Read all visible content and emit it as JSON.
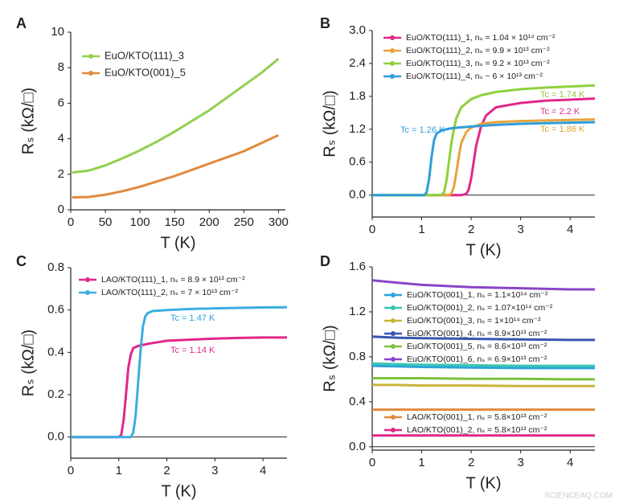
{
  "chart_data": [
    {
      "type": "line",
      "panel": "A",
      "xlabel": "T (K)",
      "ylabel": "Rₛ (kΩ/□)",
      "xlim": [
        0,
        310
      ],
      "xticks": [
        0,
        50,
        100,
        150,
        200,
        250,
        300
      ],
      "ylim": [
        0,
        10
      ],
      "yticks": [
        0,
        2,
        4,
        6,
        8,
        10
      ],
      "x": [
        2,
        25,
        50,
        75,
        100,
        125,
        150,
        175,
        200,
        225,
        250,
        275,
        300
      ],
      "series": [
        {
          "name": "EuO/KTO(111)_3",
          "color": "#8fd14f",
          "values": [
            2.1,
            2.2,
            2.5,
            2.9,
            3.35,
            3.85,
            4.4,
            5.0,
            5.6,
            6.3,
            7.0,
            7.7,
            8.5
          ]
        },
        {
          "name": "EuO/KTO(001)_5",
          "color": "#e08a3c",
          "values": [
            0.7,
            0.72,
            0.85,
            1.05,
            1.3,
            1.6,
            1.9,
            2.25,
            2.6,
            2.95,
            3.3,
            3.75,
            4.2
          ]
        }
      ]
    },
    {
      "type": "line",
      "panel": "B",
      "xlabel": "T (K)",
      "ylabel": "Rₛ (kΩ/□)",
      "xlim": [
        0,
        4.5
      ],
      "xticks": [
        0,
        1,
        2,
        3,
        4
      ],
      "ylim": [
        -0.4,
        3.0
      ],
      "yticks": [
        {
          "value": 0,
          "label": "0.0"
        },
        0.6,
        1.2,
        1.8,
        2.4,
        {
          "value": 3.0,
          "label": "3.0"
        }
      ],
      "series": [
        {
          "name": "EuO/KTO(111)_1, nₛ = 1.04 × 10¹⁴ cm⁻²",
          "color": "#e0278a",
          "x": [
            0,
            1,
            1.8,
            1.9,
            1.95,
            2.0,
            2.05,
            2.1,
            2.2,
            2.3,
            2.5,
            3,
            3.5,
            4,
            4.5
          ],
          "values": [
            0,
            0,
            0,
            0.02,
            0.1,
            0.3,
            0.6,
            0.9,
            1.25,
            1.45,
            1.6,
            1.68,
            1.72,
            1.74,
            1.76
          ]
        },
        {
          "name": "EuO/KTO(111)_2, nₛ = 9.9 × 10¹³ cm⁻²",
          "color": "#e7a33b",
          "x": [
            0,
            1,
            1.55,
            1.6,
            1.65,
            1.7,
            1.75,
            1.8,
            1.9,
            2.0,
            2.2,
            2.5,
            3,
            3.5,
            4,
            4.5
          ],
          "values": [
            0,
            0,
            0,
            0.03,
            0.15,
            0.4,
            0.7,
            0.95,
            1.15,
            1.23,
            1.3,
            1.33,
            1.35,
            1.36,
            1.37,
            1.38
          ]
        },
        {
          "name": "EuO/KTO(111)_3, nₛ = 9.2 × 10¹³ cm⁻²",
          "color": "#8ed13b",
          "x": [
            0,
            1,
            1.4,
            1.45,
            1.5,
            1.55,
            1.6,
            1.65,
            1.7,
            1.8,
            2.0,
            2.2,
            2.5,
            3,
            3.5,
            4,
            4.5
          ],
          "values": [
            0,
            0,
            0,
            0.05,
            0.25,
            0.6,
            0.95,
            1.2,
            1.4,
            1.6,
            1.75,
            1.82,
            1.88,
            1.93,
            1.96,
            1.98,
            2.0
          ]
        },
        {
          "name": "EuO/KTO(111)_4, nₛ ~ 6 × 10¹³ cm⁻²",
          "color": "#2e9ed8",
          "x": [
            0,
            0.9,
            1.05,
            1.1,
            1.15,
            1.2,
            1.25,
            1.3,
            1.4,
            1.6,
            2,
            2.5,
            3,
            3.5,
            4,
            4.5
          ],
          "values": [
            0,
            0,
            0,
            0.05,
            0.3,
            0.7,
            1.0,
            1.12,
            1.18,
            1.22,
            1.25,
            1.28,
            1.3,
            1.31,
            1.32,
            1.33
          ]
        }
      ],
      "annotations": [
        {
          "text": "Tc = 1.74 K",
          "color": "#8ec63a"
        },
        {
          "text": "Tc = 2.2 K",
          "color": "#e0278a"
        },
        {
          "text": "Tc = 1.86 K",
          "color": "#e0a033"
        },
        {
          "text": "Tc = 1.26 K",
          "color": "#2e9ed8"
        }
      ]
    },
    {
      "type": "line",
      "panel": "C",
      "xlabel": "T (K)",
      "ylabel": "Rₛ (kΩ/□)",
      "xlim": [
        0,
        4.5
      ],
      "xticks": [
        0,
        1,
        2,
        3,
        4
      ],
      "ylim": [
        -0.1,
        0.8
      ],
      "yticks": [
        {
          "value": 0,
          "label": "0.0"
        },
        0.2,
        0.4,
        0.6,
        0.8
      ],
      "series": [
        {
          "name": "LAO/KTO(111)_1, nₛ = 8.9 × 10¹³ cm⁻²",
          "color": "#e0278a",
          "x": [
            0,
            0.9,
            1.0,
            1.05,
            1.1,
            1.15,
            1.2,
            1.25,
            1.3,
            1.4,
            1.6,
            2,
            2.5,
            3,
            3.5,
            4,
            4.5
          ],
          "values": [
            0,
            0,
            0,
            0.01,
            0.08,
            0.2,
            0.33,
            0.39,
            0.42,
            0.43,
            0.44,
            0.455,
            0.46,
            0.465,
            0.468,
            0.47,
            0.47
          ]
        },
        {
          "name": "LAO/KTO(111)_2, nₛ = 7 × 10¹³ cm⁻²",
          "color": "#3aaee0",
          "x": [
            0,
            1,
            1.25,
            1.3,
            1.35,
            1.4,
            1.45,
            1.5,
            1.55,
            1.6,
            1.7,
            2,
            2.5,
            3,
            3.5,
            4,
            4.5
          ],
          "values": [
            0,
            0,
            0,
            0.02,
            0.1,
            0.25,
            0.4,
            0.52,
            0.57,
            0.585,
            0.595,
            0.6,
            0.605,
            0.608,
            0.61,
            0.612,
            0.613
          ]
        }
      ],
      "annotations": [
        {
          "text": "Tc = 1.47 K",
          "color": "#2e9ed8"
        },
        {
          "text": "Tc = 1.14 K",
          "color": "#e0278a"
        }
      ]
    },
    {
      "type": "line",
      "panel": "D",
      "xlabel": "T (K)",
      "ylabel": "Rₛ (kΩ/□)",
      "xlim": [
        0,
        4.5
      ],
      "xticks": [
        0,
        1,
        2,
        3,
        4
      ],
      "ylim": [
        -0.03,
        1.6
      ],
      "yticks": [
        {
          "value": 0,
          "label": "0.0"
        },
        0.4,
        0.8,
        1.2,
        1.6
      ],
      "x": [
        0,
        0.5,
        1,
        2,
        3,
        4,
        4.5
      ],
      "series": [
        {
          "name": "EuO/KTO(001)_1, nₛ = 1.1×10¹⁴ cm⁻²",
          "color": "#2aa3dc",
          "values": [
            0.72,
            0.715,
            0.71,
            0.705,
            0.7,
            0.7,
            0.7
          ]
        },
        {
          "name": "EuO/KTO(001)_2, nₛ = 1.07×10¹⁴ cm⁻²",
          "color": "#3cc7b0",
          "values": [
            0.74,
            0.735,
            0.73,
            0.725,
            0.72,
            0.72,
            0.72
          ]
        },
        {
          "name": "EuO/KTO(001)_3, nₛ = 1×10¹⁴ cm⁻²",
          "color": "#c9b53a",
          "values": [
            0.55,
            0.55,
            0.545,
            0.545,
            0.54,
            0.54,
            0.54
          ]
        },
        {
          "name": "EuO/KTO(001)_4, nₛ = 8.9×10¹³ cm⁻²",
          "color": "#3a55b0",
          "values": [
            0.98,
            0.97,
            0.965,
            0.96,
            0.955,
            0.95,
            0.95
          ]
        },
        {
          "name": "EuO/KTO(001)_5, nₛ = 8.6×10¹³ cm⁻²",
          "color": "#7cc23a",
          "values": [
            0.61,
            0.61,
            0.61,
            0.605,
            0.605,
            0.6,
            0.6
          ]
        },
        {
          "name": "EuO/KTO(001)_6, nₛ = 6.9×10¹³ cm⁻²",
          "color": "#8a44c8",
          "values": [
            1.48,
            1.46,
            1.44,
            1.42,
            1.41,
            1.4,
            1.4
          ]
        },
        {
          "name": "LAO/KTO(001)_1, nₛ = 5.8×10¹³ cm⁻²",
          "color": "#e08a3c",
          "values": [
            0.33,
            0.33,
            0.33,
            0.33,
            0.33,
            0.33,
            0.33
          ]
        },
        {
          "name": "LAO/KTO(001)_2, nₛ = 5.8×10¹³ cm⁻²",
          "color": "#e0278a",
          "values": [
            0.1,
            0.1,
            0.1,
            0.1,
            0.1,
            0.1,
            0.1
          ]
        }
      ]
    }
  ],
  "watermark": "SCIENCEAQ.COM"
}
